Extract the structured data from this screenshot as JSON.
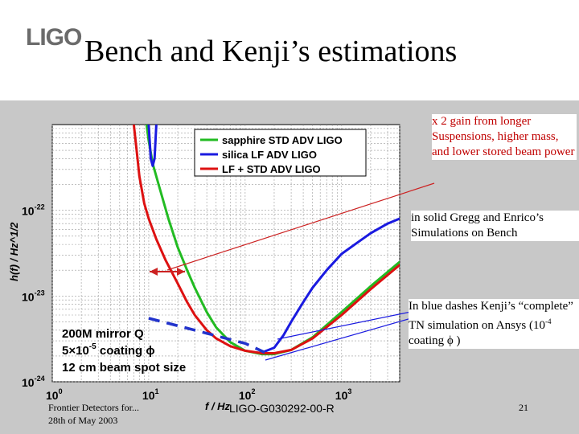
{
  "slide": {
    "title": "Bench and Kenji’s estimations",
    "logo_text": "LIGO",
    "footer_left_1": "Frontier Detectors for...",
    "footer_left_2": "28th of May 2003",
    "footer_center": "LIGO-G030292-00-R",
    "page_number": "21"
  },
  "notes": {
    "gain": "x 2 gain from longer Suspensions, higher mass, and lower stored beam power",
    "solid": "in solid Gregg and Enrico’s Simulations on Bench",
    "blue_prefix": "In blue dashes Kenji’s “complete” TN simulation on Ansys (10",
    "blue_exp": "-4",
    "blue_suffix": " coating ϕ )"
  },
  "colors": {
    "sapphire": "#22bb22",
    "silica": "#1a1ae0",
    "lf_std": "#dd1111",
    "kenji": "#2233cc",
    "arrow_red": "#cc2222",
    "arrow_blue": "#1a1ae0"
  },
  "chart_data": {
    "type": "line",
    "xlabel": "f / Hz",
    "ylabel": "h(f) / Hz^1/2",
    "x_scale": "log",
    "y_scale": "log",
    "xlim": [
      1,
      4000
    ],
    "ylim": [
      1e-24,
      1e-21
    ],
    "x_ticks": [
      {
        "value": 1,
        "base": "10",
        "exp": "0"
      },
      {
        "value": 10,
        "base": "10",
        "exp": "1"
      },
      {
        "value": 100,
        "base": "10",
        "exp": "2"
      },
      {
        "value": 1000,
        "base": "10",
        "exp": "3"
      }
    ],
    "y_ticks": [
      {
        "value": 1e-22,
        "base": "10",
        "exp": "-22"
      },
      {
        "value": 1e-23,
        "base": "10",
        "exp": "-23"
      },
      {
        "value": 1e-24,
        "base": "10",
        "exp": "-24"
      }
    ],
    "grid": true,
    "legend_position": "top-right",
    "series": [
      {
        "name": "sapphire STD ADV LIGO",
        "color": "#22bb22",
        "points": [
          [
            9.5,
            1e-21
          ],
          [
            10,
            6.5e-22
          ],
          [
            11,
            3.5e-22
          ],
          [
            13,
            1.8e-22
          ],
          [
            16,
            8e-23
          ],
          [
            20,
            3.7e-23
          ],
          [
            25,
            2e-23
          ],
          [
            30,
            1.25e-23
          ],
          [
            40,
            6.5e-24
          ],
          [
            50,
            4.3e-24
          ],
          [
            70,
            2.9e-24
          ],
          [
            100,
            2.3e-24
          ],
          [
            150,
            2.1e-24
          ],
          [
            200,
            2.1e-24
          ],
          [
            300,
            2.35e-24
          ],
          [
            500,
            3.3e-24
          ],
          [
            1000,
            6.5e-24
          ],
          [
            2000,
            1.3e-23
          ],
          [
            4000,
            2.5e-23
          ]
        ]
      },
      {
        "name": "silica LF ADV LIGO",
        "color": "#1a1ae0",
        "points": [
          [
            10,
            1e-21
          ],
          [
            10.5,
            4e-22
          ],
          [
            11,
            3.3e-22
          ],
          [
            11.5,
            4e-22
          ],
          [
            12,
            1e-21
          ]
        ]
      },
      {
        "name": "silica LF ADV LIGO",
        "color": "#1a1ae0",
        "points": [
          [
            150,
            2.2e-24
          ],
          [
            200,
            2.5e-24
          ],
          [
            250,
            3.5e-24
          ],
          [
            300,
            5e-24
          ],
          [
            400,
            8.5e-24
          ],
          [
            500,
            1.25e-23
          ],
          [
            700,
            2e-23
          ],
          [
            1000,
            3.1e-23
          ],
          [
            1500,
            4.3e-23
          ],
          [
            2000,
            5.4e-23
          ],
          [
            3000,
            7e-23
          ],
          [
            4000,
            8e-23
          ]
        ]
      },
      {
        "name": "LF + STD ADV LIGO",
        "color": "#dd1111",
        "points": [
          [
            7,
            1e-21
          ],
          [
            7.5,
            5e-22
          ],
          [
            8,
            2.5e-22
          ],
          [
            9,
            1.2e-22
          ],
          [
            10,
            8e-23
          ],
          [
            12,
            4.6e-23
          ],
          [
            15,
            2.6e-23
          ],
          [
            20,
            1.4e-23
          ],
          [
            25,
            8.5e-24
          ],
          [
            30,
            6e-24
          ],
          [
            40,
            4e-24
          ],
          [
            50,
            3.2e-24
          ],
          [
            70,
            2.6e-24
          ],
          [
            100,
            2.3e-24
          ],
          [
            150,
            2.15e-24
          ],
          [
            200,
            2.15e-24
          ],
          [
            300,
            2.35e-24
          ],
          [
            500,
            3.2e-24
          ],
          [
            1000,
            6e-24
          ],
          [
            2000,
            1.2e-23
          ],
          [
            4000,
            2.3e-23
          ]
        ]
      }
    ],
    "annotations": {
      "mirror_q": "200M mirror Q",
      "coating": "5×10",
      "coating_exp": "-5",
      "coating_suffix": " coating ϕ",
      "spot": "12 cm beam spot size",
      "kenji_dashes": [
        [
          10,
          5.5e-24
        ],
        [
          30,
          4e-24
        ],
        [
          100,
          2.8e-24
        ],
        [
          160,
          2.2e-24
        ]
      ]
    }
  }
}
